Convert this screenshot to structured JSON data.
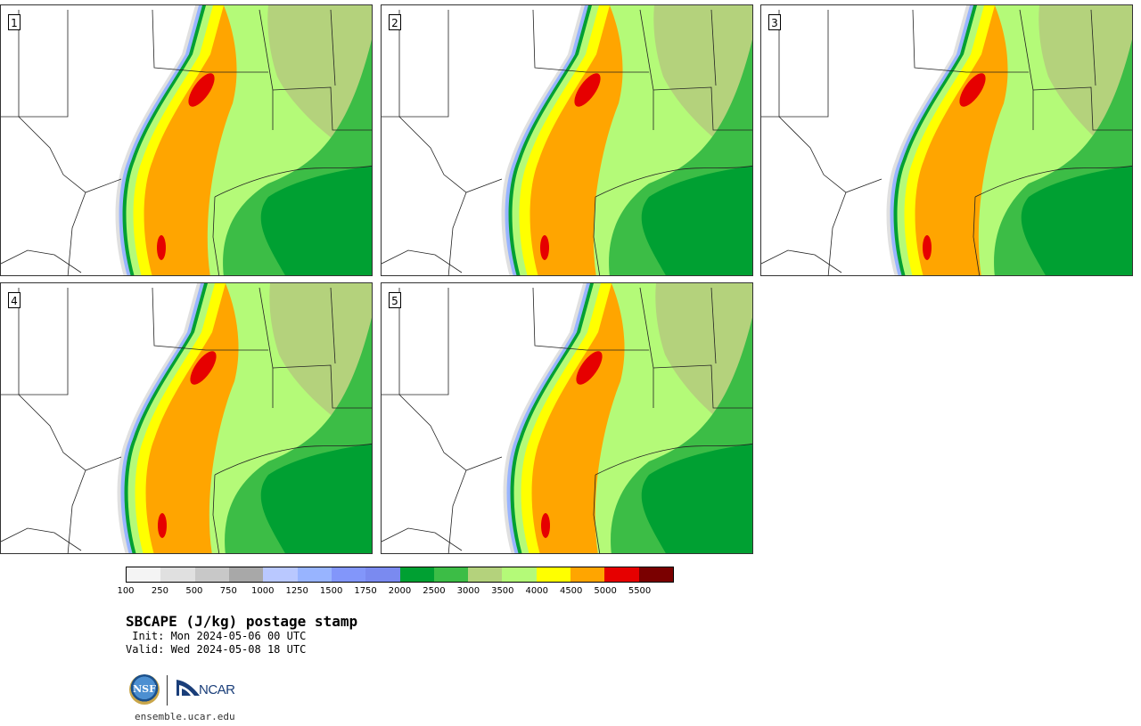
{
  "panels": [
    {
      "label": "1"
    },
    {
      "label": "2"
    },
    {
      "label": "3"
    },
    {
      "label": "4"
    },
    {
      "label": "5"
    }
  ],
  "colorbar": {
    "colors": [
      "#f4f4f4",
      "#e0e0e0",
      "#c8c8c8",
      "#a8a8a8",
      "#b9c8ff",
      "#98b4ff",
      "#8296fa",
      "#7a8af0",
      "#00a032",
      "#3cbd46",
      "#b4d27c",
      "#b4fa78",
      "#ffff00",
      "#ffa500",
      "#e60000",
      "#7a0000"
    ],
    "tick_labels": [
      "100",
      "250",
      "500",
      "750",
      "1000",
      "1250",
      "1500",
      "1750",
      "2000",
      "2500",
      "3000",
      "3500",
      "4000",
      "4500",
      "5000",
      "5500"
    ]
  },
  "title": "SBCAPE (J/kg) postage stamp",
  "init": " Init: Mon 2024-05-06 00 UTC",
  "valid": "Valid: Wed 2024-05-08 18 UTC",
  "logos": {
    "nsf_text": "NSF",
    "ncar_text": "NCAR"
  },
  "site": "ensemble.ucar.edu"
}
